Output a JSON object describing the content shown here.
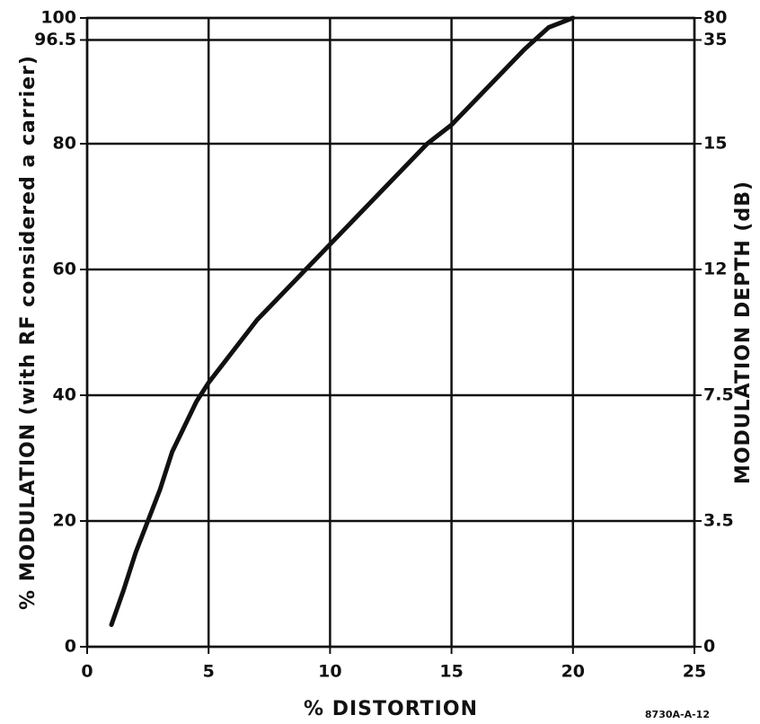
{
  "chart_data": {
    "type": "line",
    "xlabel": "% DISTORTION",
    "ylabel": "% MODULATION (with RF considered a carrier)",
    "y2label": "MODULATION DEPTH (dB)",
    "annotation": "8730A-A-12",
    "x": [
      1,
      1.5,
      2,
      2.5,
      3,
      3.5,
      4,
      4.5,
      5,
      6,
      7,
      8,
      9,
      10,
      11,
      12,
      13,
      14,
      15,
      16,
      17,
      18,
      19,
      20
    ],
    "values": [
      3.5,
      9,
      15,
      20,
      25,
      31,
      35,
      39,
      42,
      47,
      52,
      56,
      60,
      64,
      68,
      72,
      76,
      80,
      83,
      87,
      91,
      95,
      98.5,
      100
    ],
    "color": "#111111",
    "xlim": [
      0,
      25
    ],
    "xticks": [
      0,
      5,
      10,
      15,
      20,
      25
    ],
    "ylim": [
      0,
      100
    ],
    "yticks": [
      0,
      20,
      40,
      60,
      80,
      96.5,
      100
    ],
    "y2ticks": [
      0,
      3.5,
      7.5,
      12,
      15,
      35,
      80
    ],
    "grid": true
  }
}
